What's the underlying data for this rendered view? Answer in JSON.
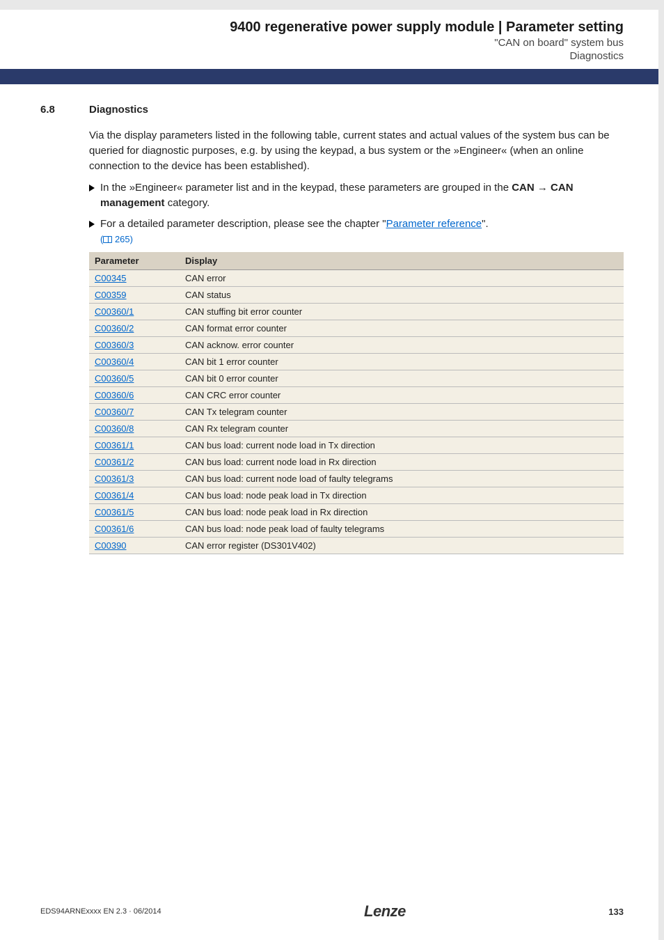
{
  "header": {
    "title": "9400 regenerative power supply module | Parameter setting",
    "sub1": "\"CAN on board\" system bus",
    "sub2": "Diagnostics"
  },
  "section": {
    "num": "6.8",
    "title": "Diagnostics"
  },
  "intro": "Via the display parameters listed in the following table, current states and actual values of the system bus can be queried for diagnostic purposes, e.g. by using the keypad, a bus system or the »Engineer« (when an online connection to the device has been established).",
  "bullet1_pre": "In the »Engineer« parameter list and in the keypad, these parameters are grouped in the ",
  "bullet1_bold": "CAN → CAN management",
  "bullet1_post": " category.",
  "bullet2_pre": "For a detailed parameter description, please see the chapter \"",
  "bullet2_link": "Parameter reference",
  "bullet2_post": "\".",
  "pageref": " 265)",
  "table": {
    "headers": {
      "col1": "Parameter",
      "col2": "Display"
    },
    "rows": [
      {
        "param": "C00345",
        "display": "CAN error"
      },
      {
        "param": "C00359",
        "display": "CAN status"
      },
      {
        "param": "C00360/1",
        "display": "CAN stuffing bit error counter"
      },
      {
        "param": "C00360/2",
        "display": "CAN format error counter"
      },
      {
        "param": "C00360/3",
        "display": "CAN acknow. error counter"
      },
      {
        "param": "C00360/4",
        "display": "CAN bit 1 error counter"
      },
      {
        "param": "C00360/5",
        "display": "CAN bit 0 error counter"
      },
      {
        "param": "C00360/6",
        "display": "CAN CRC error counter"
      },
      {
        "param": "C00360/7",
        "display": "CAN Tx telegram counter"
      },
      {
        "param": "C00360/8",
        "display": "CAN Rx telegram counter"
      },
      {
        "param": "C00361/1",
        "display": "CAN bus load: current node load in Tx direction"
      },
      {
        "param": "C00361/2",
        "display": "CAN bus load: current node load in Rx direction"
      },
      {
        "param": "C00361/3",
        "display": "CAN bus load: current node load of faulty telegrams"
      },
      {
        "param": "C00361/4",
        "display": "CAN bus load: node peak load in Tx direction"
      },
      {
        "param": "C00361/5",
        "display": "CAN bus load: node peak load in Rx direction"
      },
      {
        "param": "C00361/6",
        "display": "CAN bus load: node peak load of faulty telegrams"
      },
      {
        "param": "C00390",
        "display": "CAN error register (DS301V402)"
      }
    ]
  },
  "footer": {
    "docid": "EDS94ARNExxxx EN 2.3 · 06/2014",
    "logo": "Lenze",
    "page": "133"
  }
}
